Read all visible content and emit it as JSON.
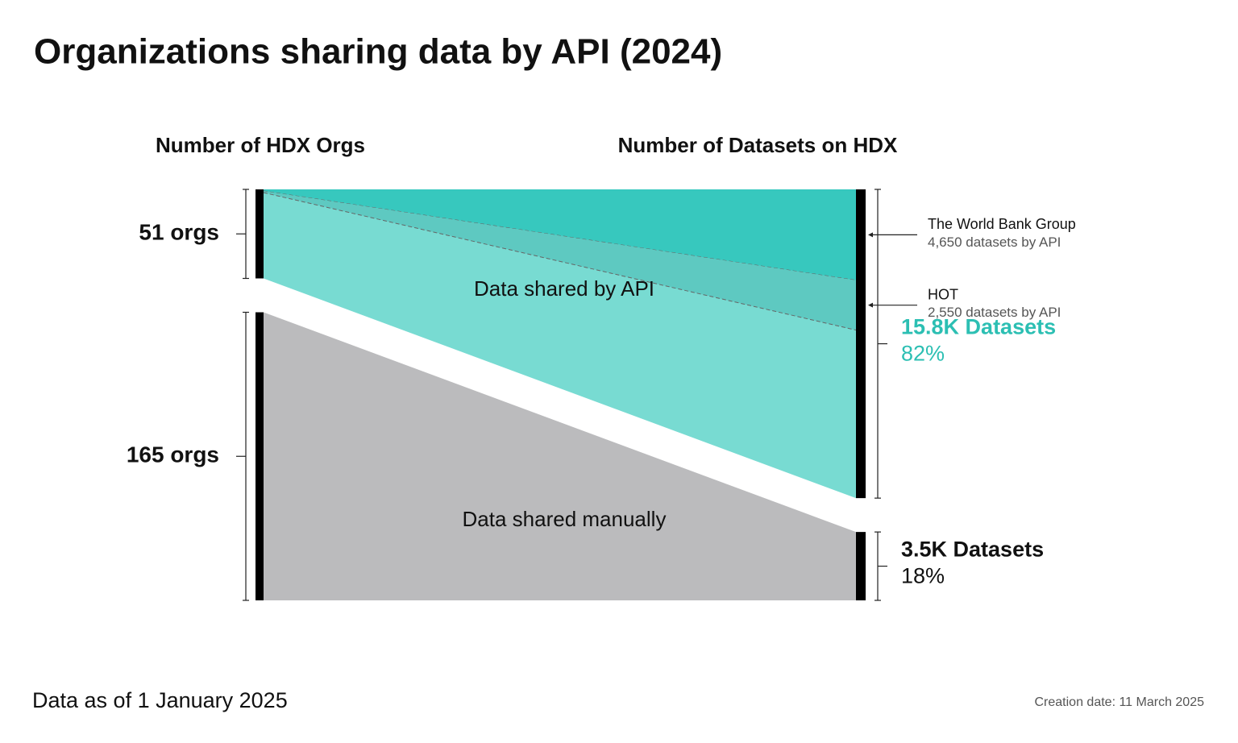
{
  "chart_data": {
    "type": "sankey",
    "title": "Organizations sharing data by API (2024)",
    "left_axis_title": "Number of HDX Orgs",
    "right_axis_title": "Number of Datasets on HDX",
    "flows": [
      {
        "name": "Data shared by API",
        "color": "#78dbd2",
        "label_color": "#2cbfb3",
        "orgs": 51,
        "orgs_label": "51 orgs",
        "datasets": 15800,
        "datasets_label": "15.8K Datasets",
        "share": 82,
        "share_label": "82%"
      },
      {
        "name": "Data shared manually",
        "color": "#bbbbbd",
        "label_color": "#111111",
        "orgs": 165,
        "orgs_label": "165 orgs",
        "datasets": 3500,
        "datasets_label": "3.5K Datasets",
        "share": 18,
        "share_label": "18%"
      }
    ],
    "highlights": [
      {
        "name": "The World Bank Group",
        "color": "#37c8be",
        "datasets": 4650,
        "datasets_label": "4,650 datasets by API"
      },
      {
        "name": "HOT",
        "color": "#5ec9c1",
        "datasets": 2550,
        "datasets_label": "2,550 datasets by API"
      }
    ],
    "note": "Data as of 1 January 2025",
    "creation_note": "Creation date: 11 March 2025"
  }
}
